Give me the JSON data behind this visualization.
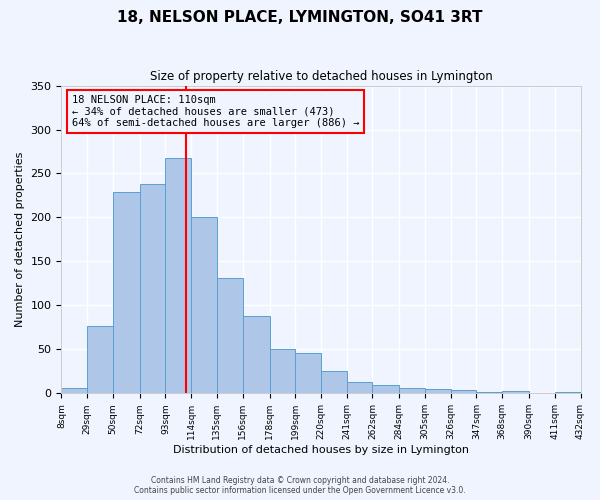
{
  "title": "18, NELSON PLACE, LYMINGTON, SO41 3RT",
  "subtitle": "Size of property relative to detached houses in Lymington",
  "xlabel": "Distribution of detached houses by size in Lymington",
  "ylabel": "Number of detached properties",
  "bar_color": "#aec6e8",
  "bar_edge_color": "#5a9fd4",
  "background_color": "#f0f4ff",
  "grid_color": "#ffffff",
  "bin_labels": [
    "8sqm",
    "29sqm",
    "50sqm",
    "72sqm",
    "93sqm",
    "114sqm",
    "135sqm",
    "156sqm",
    "178sqm",
    "199sqm",
    "220sqm",
    "241sqm",
    "262sqm",
    "284sqm",
    "305sqm",
    "326sqm",
    "347sqm",
    "368sqm",
    "390sqm",
    "411sqm",
    "432sqm"
  ],
  "bin_edges": [
    8,
    29,
    50,
    72,
    93,
    114,
    135,
    156,
    178,
    199,
    220,
    241,
    262,
    284,
    305,
    326,
    347,
    368,
    390,
    411,
    432
  ],
  "bar_heights": [
    6,
    77,
    229,
    238,
    268,
    201,
    131,
    88,
    50,
    46,
    25,
    13,
    10,
    6,
    5,
    4,
    1,
    3,
    0,
    2
  ],
  "vline_x": 110,
  "vline_color": "red",
  "ylim": [
    0,
    350
  ],
  "annotation_title": "18 NELSON PLACE: 110sqm",
  "annotation_line1": "← 34% of detached houses are smaller (473)",
  "annotation_line2": "64% of semi-detached houses are larger (886) →",
  "annotation_box_color": "red",
  "footer1": "Contains HM Land Registry data © Crown copyright and database right 2024.",
  "footer2": "Contains public sector information licensed under the Open Government Licence v3.0."
}
